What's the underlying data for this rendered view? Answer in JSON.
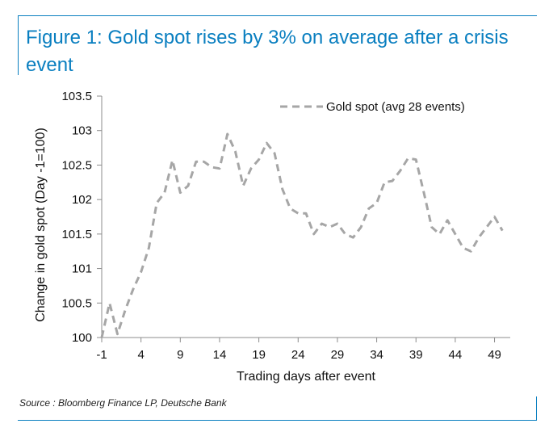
{
  "header": {
    "title": "Figure 1: Gold spot rises by 3% on average after a crisis event"
  },
  "footer": {
    "source": "Source : Bloomberg Finance LP, Deutsche Bank"
  },
  "colors": {
    "accent": "#0a7fc0",
    "series": "#a6a6a6"
  },
  "chart_data": {
    "type": "line",
    "title": "",
    "xlabel": "Trading days after event",
    "ylabel": "Change in gold spot (Day -1=100)",
    "xlim": [
      -1,
      51
    ],
    "ylim": [
      100,
      103.5
    ],
    "xticks": [
      -1,
      4,
      9,
      14,
      19,
      24,
      29,
      34,
      39,
      44,
      49
    ],
    "yticks": [
      100,
      100.5,
      101,
      101.5,
      102,
      102.5,
      103,
      103.5
    ],
    "ytick_labels": [
      "100",
      "100.5",
      "101",
      "101.5",
      "102",
      "102.5",
      "103",
      "103.5"
    ],
    "grid": false,
    "legend": "top-right",
    "series": [
      {
        "name": "Gold spot (avg 28 events)",
        "style": "dashed",
        "x": [
          -1,
          0,
          1,
          2,
          3,
          4,
          5,
          6,
          7,
          8,
          9,
          10,
          11,
          12,
          13,
          14,
          15,
          16,
          17,
          18,
          19,
          20,
          21,
          22,
          23,
          24,
          25,
          26,
          27,
          28,
          29,
          30,
          31,
          32,
          33,
          34,
          35,
          36,
          37,
          38,
          39,
          40,
          41,
          42,
          43,
          44,
          45,
          46,
          47,
          48,
          49,
          50
        ],
        "y": [
          100.0,
          100.5,
          100.05,
          100.4,
          100.7,
          100.95,
          101.3,
          101.95,
          102.1,
          102.57,
          102.1,
          102.2,
          102.55,
          102.55,
          102.47,
          102.45,
          102.95,
          102.7,
          102.2,
          102.45,
          102.58,
          102.82,
          102.67,
          102.15,
          101.87,
          101.8,
          101.8,
          101.5,
          101.65,
          101.6,
          101.65,
          101.5,
          101.45,
          101.6,
          101.87,
          101.95,
          102.25,
          102.27,
          102.42,
          102.6,
          102.58,
          102.1,
          101.6,
          101.5,
          101.7,
          101.5,
          101.3,
          101.25,
          101.45,
          101.6,
          101.75,
          101.55
        ]
      }
    ]
  }
}
